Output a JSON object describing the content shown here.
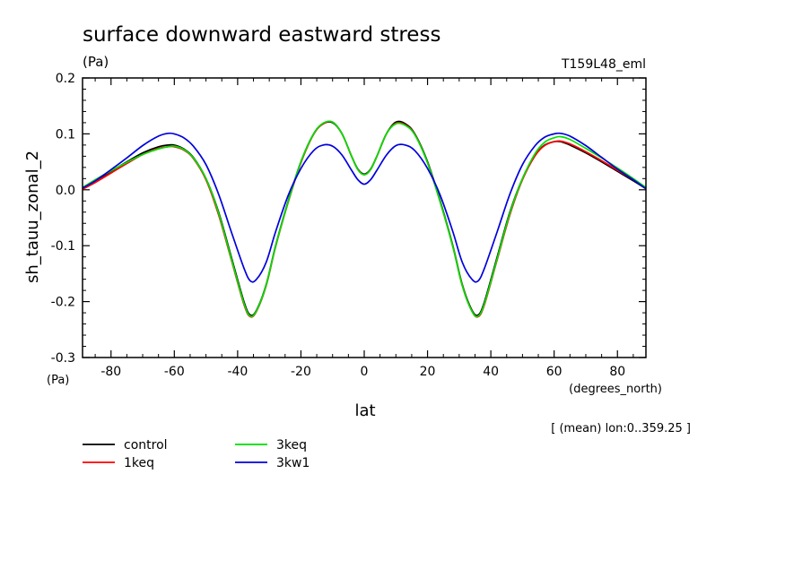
{
  "chart_data": {
    "type": "line",
    "title": "surface downward eastward stress",
    "units_left": "(Pa)",
    "units_bottom_left": "(Pa)",
    "run_label": "T159L48_eml",
    "ylabel": "sh_tauu_zonal_2",
    "xlabel": "lat",
    "xunits": "(degrees_north)",
    "note": "[ (mean) lon:0..359.25 ]",
    "xlim": [
      -89,
      89
    ],
    "ylim": [
      -0.3,
      0.2
    ],
    "xticks": [
      -80,
      -60,
      -40,
      -20,
      0,
      20,
      40,
      60,
      80
    ],
    "xtick_labels": [
      "-80",
      "-60",
      "-40",
      "-20",
      "0",
      "20",
      "40",
      "60",
      "80"
    ],
    "yticks": [
      -0.3,
      -0.2,
      -0.1,
      0.0,
      0.1,
      0.2
    ],
    "ytick_labels": [
      "-0.3",
      "-0.2",
      "-0.1",
      "0.0",
      "0.1",
      "0.2"
    ],
    "grid": false,
    "legend_position": "bottom-left",
    "x": [
      -89,
      -85,
      -80,
      -75,
      -70,
      -65,
      -62,
      -60,
      -57,
      -54,
      -50,
      -46,
      -42,
      -38,
      -36,
      -34,
      -31,
      -28,
      -24,
      -20,
      -16,
      -13,
      -10,
      -7,
      -4,
      -2,
      0,
      2,
      4,
      7,
      10,
      13,
      16,
      20,
      24,
      28,
      31,
      34,
      36,
      38,
      42,
      46,
      50,
      54,
      57,
      60,
      62,
      65,
      70,
      75,
      80,
      85,
      89
    ],
    "series": [
      {
        "name": "control",
        "color": "#000000",
        "values": [
          0.002,
          0.016,
          0.033,
          0.05,
          0.066,
          0.077,
          0.08,
          0.08,
          0.073,
          0.058,
          0.02,
          -0.04,
          -0.12,
          -0.2,
          -0.224,
          -0.215,
          -0.17,
          -0.1,
          -0.02,
          0.05,
          0.1,
          0.118,
          0.12,
          0.1,
          0.06,
          0.037,
          0.028,
          0.037,
          0.06,
          0.1,
          0.121,
          0.118,
          0.1,
          0.05,
          -0.02,
          -0.1,
          -0.17,
          -0.215,
          -0.224,
          -0.2,
          -0.12,
          -0.04,
          0.02,
          0.062,
          0.08,
          0.086,
          0.086,
          0.08,
          0.066,
          0.05,
          0.033,
          0.016,
          0.002
        ]
      },
      {
        "name": "1keq",
        "color": "#ff0000",
        "values": [
          0.001,
          0.013,
          0.03,
          0.047,
          0.063,
          0.074,
          0.077,
          0.077,
          0.071,
          0.056,
          0.018,
          -0.045,
          -0.125,
          -0.205,
          -0.227,
          -0.217,
          -0.172,
          -0.102,
          -0.022,
          0.048,
          0.099,
          0.118,
          0.121,
          0.1,
          0.06,
          0.036,
          0.027,
          0.036,
          0.06,
          0.1,
          0.119,
          0.116,
          0.099,
          0.048,
          -0.022,
          -0.102,
          -0.172,
          -0.217,
          -0.227,
          -0.205,
          -0.125,
          -0.045,
          0.018,
          0.061,
          0.079,
          0.086,
          0.087,
          0.082,
          0.068,
          0.052,
          0.035,
          0.018,
          0.003
        ]
      },
      {
        "name": "3keq",
        "color": "#00e000",
        "values": [
          0.004,
          0.018,
          0.034,
          0.049,
          0.063,
          0.073,
          0.077,
          0.078,
          0.072,
          0.057,
          0.02,
          -0.042,
          -0.123,
          -0.203,
          -0.226,
          -0.216,
          -0.171,
          -0.101,
          -0.021,
          0.05,
          0.1,
          0.119,
          0.121,
          0.1,
          0.06,
          0.036,
          0.027,
          0.036,
          0.06,
          0.1,
          0.118,
          0.115,
          0.098,
          0.048,
          -0.022,
          -0.102,
          -0.172,
          -0.217,
          -0.226,
          -0.203,
          -0.123,
          -0.042,
          0.02,
          0.065,
          0.085,
          0.093,
          0.095,
          0.09,
          0.074,
          0.057,
          0.039,
          0.02,
          0.004
        ]
      },
      {
        "name": "3kw1",
        "color": "#0000dd",
        "values": [
          0.003,
          0.016,
          0.036,
          0.057,
          0.079,
          0.096,
          0.101,
          0.1,
          0.093,
          0.078,
          0.045,
          -0.008,
          -0.075,
          -0.14,
          -0.163,
          -0.16,
          -0.13,
          -0.075,
          -0.01,
          0.038,
          0.07,
          0.08,
          0.078,
          0.062,
          0.035,
          0.018,
          0.01,
          0.018,
          0.035,
          0.062,
          0.079,
          0.08,
          0.07,
          0.038,
          -0.01,
          -0.075,
          -0.13,
          -0.16,
          -0.163,
          -0.14,
          -0.075,
          -0.008,
          0.045,
          0.079,
          0.094,
          0.1,
          0.101,
          0.096,
          0.079,
          0.058,
          0.037,
          0.018,
          0.002
        ]
      }
    ]
  }
}
